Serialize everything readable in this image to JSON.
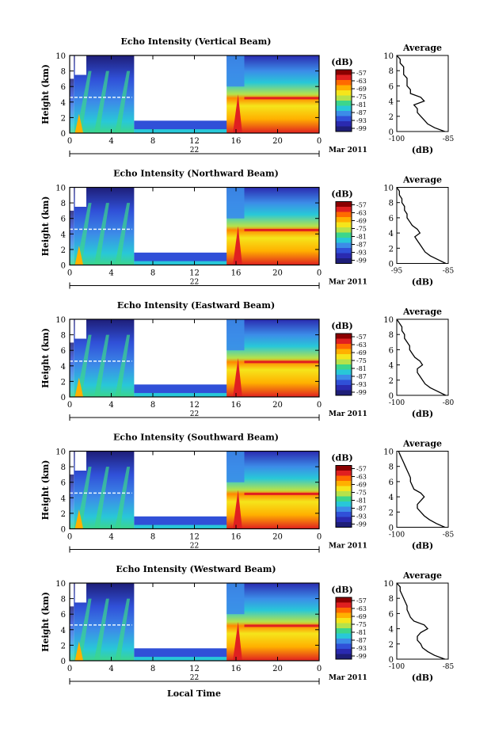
{
  "page": {
    "xlabel": "Local Time",
    "date_label": "Mar 2011",
    "day_label": "22"
  },
  "chart_data": [
    {
      "type": "heatmap",
      "title": "Echo Intensity (Vertical Beam)",
      "ylabel": "Height (km)",
      "xlabel": "Local Time",
      "xticks": [
        "0",
        "4",
        "8",
        "12",
        "16",
        "20",
        "0"
      ],
      "yticks": [
        "0",
        "2",
        "4",
        "6",
        "8",
        "10"
      ],
      "xlim": [
        0,
        24
      ],
      "ylim": [
        0,
        10
      ],
      "colorbar_unit": "(dB)",
      "colorbar_ticks": [
        "-57",
        "-63",
        "-69",
        "-75",
        "-81",
        "-87",
        "-93",
        "-99"
      ],
      "colorbar_colors": [
        "#8b0000",
        "#e02020",
        "#ff6a00",
        "#ffb000",
        "#f5e51b",
        "#b6e24a",
        "#3cd68c",
        "#28c8d8",
        "#3c8ce8",
        "#3050d8",
        "#2a2ab0",
        "#1e1e78"
      ],
      "profile": {
        "title": "Average",
        "xlabel": "(dB)",
        "xticks": [
          "-100",
          "-85"
        ],
        "xlim": [
          -100,
          -85
        ],
        "yticks": [
          "0",
          "2",
          "4",
          "6",
          "8",
          "10"
        ],
        "heights": [
          0,
          0.5,
          1,
          1.5,
          2,
          2.5,
          3,
          3.5,
          4,
          4.5,
          5,
          5.5,
          6,
          6.5,
          7,
          7.5,
          8,
          8.5,
          9,
          9.5,
          10
        ],
        "values": [
          -86,
          -89,
          -91,
          -92,
          -93,
          -94,
          -94,
          -95,
          -92,
          -93,
          -96,
          -96,
          -97,
          -97,
          -97,
          -98,
          -98,
          -98,
          -99,
          -99,
          -100
        ]
      }
    },
    {
      "type": "heatmap",
      "title": "Echo Intensity (Northward Beam)",
      "ylabel": "Height (km)",
      "xlabel": "Local Time",
      "xticks": [
        "0",
        "4",
        "8",
        "12",
        "16",
        "20",
        "0"
      ],
      "yticks": [
        "0",
        "2",
        "4",
        "6",
        "8",
        "10"
      ],
      "xlim": [
        0,
        24
      ],
      "ylim": [
        0,
        10
      ],
      "colorbar_unit": "(dB)",
      "colorbar_ticks": [
        "-57",
        "-63",
        "-69",
        "-75",
        "-81",
        "-87",
        "-93",
        "-99"
      ],
      "colorbar_colors": [
        "#8b0000",
        "#e02020",
        "#ff6a00",
        "#ffb000",
        "#f5e51b",
        "#b6e24a",
        "#3cd68c",
        "#28c8d8",
        "#3c8ce8",
        "#3050d8",
        "#2a2ab0",
        "#1e1e78"
      ],
      "profile": {
        "title": "Average",
        "xlabel": "(dB)",
        "xticks": [
          "-95",
          "-85"
        ],
        "xlim": [
          -95,
          -85
        ],
        "yticks": [
          "0",
          "2",
          "4",
          "6",
          "8",
          "10"
        ],
        "heights": [
          0,
          0.5,
          1,
          1.5,
          2,
          2.5,
          3,
          3.5,
          4,
          4.5,
          5,
          5.5,
          6,
          6.5,
          7,
          7.5,
          8,
          8.5,
          9,
          9.5,
          10
        ],
        "values": [
          -85.5,
          -87,
          -88.5,
          -89.5,
          -90,
          -90.5,
          -91,
          -91.5,
          -90.5,
          -91,
          -92,
          -92.5,
          -93,
          -93,
          -93.5,
          -93.5,
          -94,
          -94,
          -94.5,
          -94.5,
          -95
        ]
      }
    },
    {
      "type": "heatmap",
      "title": "Echo Intensity (Eastward Beam)",
      "ylabel": "Height (km)",
      "xlabel": "Local Time",
      "xticks": [
        "0",
        "4",
        "8",
        "12",
        "16",
        "20",
        "0"
      ],
      "yticks": [
        "0",
        "2",
        "4",
        "6",
        "8",
        "10"
      ],
      "xlim": [
        0,
        24
      ],
      "ylim": [
        0,
        10
      ],
      "colorbar_unit": "(dB)",
      "colorbar_ticks": [
        "-57",
        "-63",
        "-69",
        "-75",
        "-81",
        "-87",
        "-93",
        "-99"
      ],
      "colorbar_colors": [
        "#8b0000",
        "#e02020",
        "#ff6a00",
        "#ffb000",
        "#f5e51b",
        "#b6e24a",
        "#3cd68c",
        "#28c8d8",
        "#3c8ce8",
        "#3050d8",
        "#2a2ab0",
        "#1e1e78"
      ],
      "profile": {
        "title": "Average",
        "xlabel": "(dB)",
        "xticks": [
          "-100",
          "-80"
        ],
        "xlim": [
          -100,
          -80
        ],
        "yticks": [
          "0",
          "2",
          "4",
          "6",
          "8",
          "10"
        ],
        "heights": [
          0,
          0.5,
          1,
          1.5,
          2,
          2.5,
          3,
          3.5,
          4,
          4.5,
          5,
          5.5,
          6,
          6.5,
          7,
          7.5,
          8,
          8.5,
          9,
          9.5,
          10
        ],
        "values": [
          -81,
          -84,
          -87,
          -89,
          -90,
          -91,
          -92,
          -92,
          -90,
          -91,
          -93,
          -94,
          -95,
          -95,
          -96,
          -97,
          -97,
          -98,
          -98,
          -99,
          -100
        ]
      }
    },
    {
      "type": "heatmap",
      "title": "Echo Intensity (Southward Beam)",
      "ylabel": "Height (km)",
      "xlabel": "Local Time",
      "xticks": [
        "0",
        "4",
        "8",
        "12",
        "16",
        "20",
        "0"
      ],
      "yticks": [
        "0",
        "2",
        "4",
        "6",
        "8",
        "10"
      ],
      "xlim": [
        0,
        24
      ],
      "ylim": [
        0,
        10
      ],
      "colorbar_unit": "(dB)",
      "colorbar_ticks": [
        "-57",
        "-63",
        "-69",
        "-75",
        "-81",
        "-87",
        "-93",
        "-99"
      ],
      "colorbar_colors": [
        "#8b0000",
        "#e02020",
        "#ff6a00",
        "#ffb000",
        "#f5e51b",
        "#b6e24a",
        "#3cd68c",
        "#28c8d8",
        "#3c8ce8",
        "#3050d8",
        "#2a2ab0",
        "#1e1e78"
      ],
      "profile": {
        "title": "Average",
        "xlabel": "(dB)",
        "xticks": [
          "-100",
          "-85"
        ],
        "xlim": [
          -100,
          -85
        ],
        "yticks": [
          "0",
          "2",
          "4",
          "6",
          "8",
          "10"
        ],
        "heights": [
          0,
          0.5,
          1,
          1.5,
          2,
          2.5,
          3,
          3.5,
          4,
          4.5,
          5,
          5.5,
          6,
          6.5,
          7,
          7.5,
          8,
          8.5,
          9,
          9.5,
          10
        ],
        "values": [
          -86,
          -88.5,
          -90.5,
          -92,
          -93,
          -94,
          -94,
          -93,
          -92,
          -93,
          -95,
          -95.5,
          -96,
          -96,
          -96.5,
          -97,
          -97.5,
          -98,
          -98.5,
          -99,
          -99.5
        ]
      }
    },
    {
      "type": "heatmap",
      "title": "Echo Intensity (Westward Beam)",
      "ylabel": "Height (km)",
      "xlabel": "Local Time",
      "xticks": [
        "0",
        "4",
        "8",
        "12",
        "16",
        "20",
        "0"
      ],
      "yticks": [
        "0",
        "2",
        "4",
        "6",
        "8",
        "10"
      ],
      "xlim": [
        0,
        24
      ],
      "ylim": [
        0,
        10
      ],
      "colorbar_unit": "(dB)",
      "colorbar_ticks": [
        "-57",
        "-63",
        "-69",
        "-75",
        "-81",
        "-87",
        "-93",
        "-99"
      ],
      "colorbar_colors": [
        "#8b0000",
        "#e02020",
        "#ff6a00",
        "#ffb000",
        "#f5e51b",
        "#b6e24a",
        "#3cd68c",
        "#28c8d8",
        "#3c8ce8",
        "#3050d8",
        "#2a2ab0",
        "#1e1e78"
      ],
      "profile": {
        "title": "Average",
        "xlabel": "(dB)",
        "xticks": [
          "-100",
          "-85"
        ],
        "xlim": [
          -100,
          -85
        ],
        "yticks": [
          "0",
          "2",
          "4",
          "6",
          "8",
          "10"
        ],
        "heights": [
          0,
          0.5,
          1,
          1.5,
          2,
          2.5,
          3,
          3.5,
          4,
          4.5,
          5,
          5.5,
          6,
          6.5,
          7,
          7.5,
          8,
          8.5,
          9,
          9.5,
          10
        ],
        "values": [
          -86,
          -89,
          -91,
          -92.5,
          -93,
          -94,
          -94,
          -93,
          -91,
          -92,
          -95,
          -96,
          -96.5,
          -97,
          -97,
          -97.5,
          -98,
          -98.5,
          -99,
          -99,
          -100
        ]
      }
    }
  ]
}
